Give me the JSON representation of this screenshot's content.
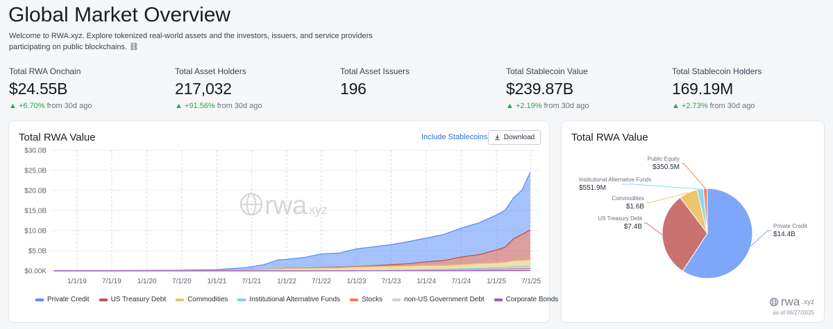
{
  "page": {
    "title": "Global Market Overview",
    "subtitle": "Welcome to RWA.xyz. Explore tokenized real-world assets and the investors, issuers, and service providers participating on public blockchains. ⛓"
  },
  "stats": [
    {
      "label": "Total RWA Onchain",
      "value": "$24.55B",
      "change": "▲ +6.70%",
      "suffix": "from 30d ago"
    },
    {
      "label": "Total Asset Holders",
      "value": "217,032",
      "change": "▲ +91.56%",
      "suffix": "from 30d ago"
    },
    {
      "label": "Total Asset Issuers",
      "value": "196",
      "change": "",
      "suffix": ""
    },
    {
      "label": "Total Stablecoin Value",
      "value": "$239.87B",
      "change": "▲ +2.19%",
      "suffix": "from 30d ago"
    },
    {
      "label": "Total Stablecoin Holders",
      "value": "169.19M",
      "change": "▲ +2.73%",
      "suffix": "from 30d ago"
    }
  ],
  "area_card": {
    "title": "Total RWA Value",
    "include_stablecoins": "Include Stablecoins",
    "download": "Download",
    "watermark": "rwa",
    "watermark_suffix": ".xyz"
  },
  "pie_card": {
    "title": "Total RWA Value",
    "logo": "rwa",
    "logo_suffix": ".xyz",
    "as_of": "as of 06/27/2025"
  },
  "colors": {
    "accent": "#2e6fd8",
    "up": "#22a64a",
    "private_credit": "#5b8ff9",
    "us_treasury": "#c0504d",
    "commodities": "#e8c26a",
    "inst_alt_funds": "#7fd3ea",
    "stocks": "#f07d4f",
    "non_us_gov": "#c8d3df",
    "corporate_bonds": "#9b59d0",
    "public_equity": "#ec8a6a"
  },
  "chart_data": [
    {
      "type": "area",
      "title": "Total RWA Value",
      "x_ticks": [
        "1/1/19",
        "7/1/19",
        "1/1/20",
        "7/1/20",
        "1/1/21",
        "7/1/21",
        "1/1/22",
        "7/1/22",
        "1/1/23",
        "7/1/23",
        "1/1/24",
        "7/1/24",
        "1/1/25",
        "7/1/25"
      ],
      "y_ticks": [
        "$0.00K",
        "$5.0B",
        "$10.0B",
        "$15.0B",
        "$20.0B",
        "$25.0B",
        "$30.0B"
      ],
      "ylim": [
        0,
        30
      ],
      "y_unit": "B USD",
      "stacked": true,
      "x": [
        "2018-09-01",
        "2019-06-01",
        "2020-06-01",
        "2021-01-01",
        "2021-06-01",
        "2021-09-01",
        "2021-11-15",
        "2022-01-01",
        "2022-04-01",
        "2022-07-01",
        "2022-10-01",
        "2023-01-01",
        "2023-04-01",
        "2023-07-01",
        "2023-10-01",
        "2024-01-01",
        "2024-04-01",
        "2024-07-01",
        "2024-10-01",
        "2025-01-01",
        "2025-02-15",
        "2025-04-01",
        "2025-05-15",
        "2025-06-27"
      ],
      "series": [
        {
          "name": "Private Credit",
          "color": "#5b8ff9",
          "values": [
            0.02,
            0.05,
            0.1,
            0.2,
            0.6,
            1.1,
            2.2,
            2.2,
            2.6,
            3.4,
            3.5,
            4.4,
            4.7,
            5.0,
            5.5,
            5.9,
            6.5,
            7.2,
            7.9,
            8.7,
            9.2,
            10.2,
            11.0,
            14.4
          ]
        },
        {
          "name": "US Treasury Debt",
          "color": "#c0504d",
          "values": [
            0,
            0,
            0,
            0,
            0,
            0,
            0,
            0.05,
            0.08,
            0.1,
            0.15,
            0.12,
            0.2,
            0.4,
            0.6,
            0.9,
            1.2,
            1.9,
            2.2,
            3.2,
            3.7,
            5.5,
            6.5,
            7.4
          ]
        },
        {
          "name": "Commodities",
          "color": "#e8c26a",
          "values": [
            0,
            0,
            0.05,
            0.1,
            0.2,
            0.4,
            0.5,
            0.6,
            0.65,
            0.7,
            0.75,
            0.9,
            1.0,
            1.0,
            1.0,
            1.1,
            1.0,
            1.1,
            1.2,
            1.2,
            1.3,
            1.5,
            1.5,
            1.6
          ]
        },
        {
          "name": "Institutional Alternative Funds",
          "color": "#7fd3ea",
          "values": [
            0,
            0,
            0,
            0,
            0,
            0,
            0,
            0,
            0,
            0,
            0,
            0,
            0.02,
            0.05,
            0.1,
            0.1,
            0.15,
            0.2,
            0.3,
            0.4,
            0.45,
            0.5,
            0.55,
            0.55
          ]
        },
        {
          "name": "Stocks",
          "color": "#f07d4f",
          "values": [
            0,
            0,
            0,
            0,
            0,
            0,
            0,
            0,
            0,
            0,
            0,
            0,
            0,
            0,
            0.02,
            0.05,
            0.08,
            0.1,
            0.15,
            0.2,
            0.22,
            0.28,
            0.32,
            0.35
          ]
        },
        {
          "name": "non-US Government Debt",
          "color": "#c8d3df",
          "values": [
            0,
            0,
            0,
            0,
            0,
            0,
            0,
            0,
            0,
            0.01,
            0.02,
            0.03,
            0.04,
            0.05,
            0.06,
            0.08,
            0.1,
            0.1,
            0.12,
            0.13,
            0.14,
            0.15,
            0.15,
            0.16
          ]
        },
        {
          "name": "Corporate Bonds",
          "color": "#9b59d0",
          "values": [
            0,
            0,
            0,
            0,
            0,
            0,
            0,
            0,
            0,
            0,
            0,
            0.01,
            0.01,
            0.02,
            0.02,
            0.03,
            0.03,
            0.04,
            0.04,
            0.05,
            0.05,
            0.06,
            0.06,
            0.07
          ]
        }
      ],
      "legend": "bottom",
      "grid": true
    },
    {
      "type": "pie",
      "title": "Total RWA Value",
      "slices": [
        {
          "name": "Private Credit",
          "label": "$14.4B",
          "value": 14.4,
          "color": "#7ea6f9"
        },
        {
          "name": "US Treasury Debt",
          "label": "$7.4B",
          "value": 7.4,
          "color": "#c97270"
        },
        {
          "name": "Commodities",
          "label": "$1.6B",
          "value": 1.6,
          "color": "#edc66e"
        },
        {
          "name": "Institutional Alternative Funds",
          "label": "$551.9M",
          "value": 0.5519,
          "color": "#8fd6ee"
        },
        {
          "name": "Public Equity",
          "label": "$350.5M",
          "value": 0.3505,
          "color": "#ec8a6a"
        }
      ]
    }
  ]
}
